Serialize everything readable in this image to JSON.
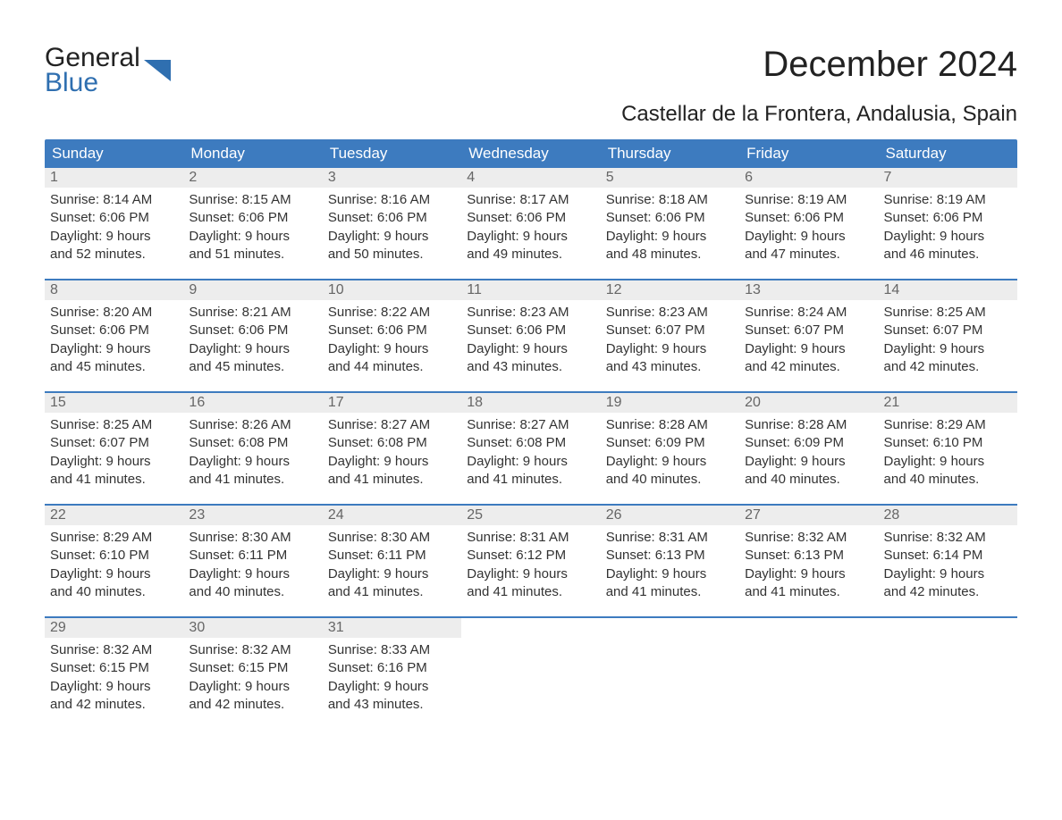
{
  "logo": {
    "line1": "General",
    "line2": "Blue",
    "accent_color": "#2f6fb0"
  },
  "title": "December 2024",
  "subtitle": "Castellar de la Frontera, Andalusia, Spain",
  "colors": {
    "header_bg": "#3d7bbf",
    "header_text": "#ffffff",
    "daynum_bg": "#ededed",
    "daynum_text": "#666666",
    "body_text": "#333333",
    "week_border": "#3d7bbf",
    "page_bg": "#ffffff"
  },
  "typography": {
    "title_fontsize": 40,
    "subtitle_fontsize": 24,
    "weekday_fontsize": 17,
    "daynum_fontsize": 16,
    "body_fontsize": 15
  },
  "weekdays": [
    "Sunday",
    "Monday",
    "Tuesday",
    "Wednesday",
    "Thursday",
    "Friday",
    "Saturday"
  ],
  "weeks": [
    [
      {
        "n": "1",
        "sunrise": "Sunrise: 8:14 AM",
        "sunset": "Sunset: 6:06 PM",
        "day1": "Daylight: 9 hours",
        "day2": "and 52 minutes."
      },
      {
        "n": "2",
        "sunrise": "Sunrise: 8:15 AM",
        "sunset": "Sunset: 6:06 PM",
        "day1": "Daylight: 9 hours",
        "day2": "and 51 minutes."
      },
      {
        "n": "3",
        "sunrise": "Sunrise: 8:16 AM",
        "sunset": "Sunset: 6:06 PM",
        "day1": "Daylight: 9 hours",
        "day2": "and 50 minutes."
      },
      {
        "n": "4",
        "sunrise": "Sunrise: 8:17 AM",
        "sunset": "Sunset: 6:06 PM",
        "day1": "Daylight: 9 hours",
        "day2": "and 49 minutes."
      },
      {
        "n": "5",
        "sunrise": "Sunrise: 8:18 AM",
        "sunset": "Sunset: 6:06 PM",
        "day1": "Daylight: 9 hours",
        "day2": "and 48 minutes."
      },
      {
        "n": "6",
        "sunrise": "Sunrise: 8:19 AM",
        "sunset": "Sunset: 6:06 PM",
        "day1": "Daylight: 9 hours",
        "day2": "and 47 minutes."
      },
      {
        "n": "7",
        "sunrise": "Sunrise: 8:19 AM",
        "sunset": "Sunset: 6:06 PM",
        "day1": "Daylight: 9 hours",
        "day2": "and 46 minutes."
      }
    ],
    [
      {
        "n": "8",
        "sunrise": "Sunrise: 8:20 AM",
        "sunset": "Sunset: 6:06 PM",
        "day1": "Daylight: 9 hours",
        "day2": "and 45 minutes."
      },
      {
        "n": "9",
        "sunrise": "Sunrise: 8:21 AM",
        "sunset": "Sunset: 6:06 PM",
        "day1": "Daylight: 9 hours",
        "day2": "and 45 minutes."
      },
      {
        "n": "10",
        "sunrise": "Sunrise: 8:22 AM",
        "sunset": "Sunset: 6:06 PM",
        "day1": "Daylight: 9 hours",
        "day2": "and 44 minutes."
      },
      {
        "n": "11",
        "sunrise": "Sunrise: 8:23 AM",
        "sunset": "Sunset: 6:06 PM",
        "day1": "Daylight: 9 hours",
        "day2": "and 43 minutes."
      },
      {
        "n": "12",
        "sunrise": "Sunrise: 8:23 AM",
        "sunset": "Sunset: 6:07 PM",
        "day1": "Daylight: 9 hours",
        "day2": "and 43 minutes."
      },
      {
        "n": "13",
        "sunrise": "Sunrise: 8:24 AM",
        "sunset": "Sunset: 6:07 PM",
        "day1": "Daylight: 9 hours",
        "day2": "and 42 minutes."
      },
      {
        "n": "14",
        "sunrise": "Sunrise: 8:25 AM",
        "sunset": "Sunset: 6:07 PM",
        "day1": "Daylight: 9 hours",
        "day2": "and 42 minutes."
      }
    ],
    [
      {
        "n": "15",
        "sunrise": "Sunrise: 8:25 AM",
        "sunset": "Sunset: 6:07 PM",
        "day1": "Daylight: 9 hours",
        "day2": "and 41 minutes."
      },
      {
        "n": "16",
        "sunrise": "Sunrise: 8:26 AM",
        "sunset": "Sunset: 6:08 PM",
        "day1": "Daylight: 9 hours",
        "day2": "and 41 minutes."
      },
      {
        "n": "17",
        "sunrise": "Sunrise: 8:27 AM",
        "sunset": "Sunset: 6:08 PM",
        "day1": "Daylight: 9 hours",
        "day2": "and 41 minutes."
      },
      {
        "n": "18",
        "sunrise": "Sunrise: 8:27 AM",
        "sunset": "Sunset: 6:08 PM",
        "day1": "Daylight: 9 hours",
        "day2": "and 41 minutes."
      },
      {
        "n": "19",
        "sunrise": "Sunrise: 8:28 AM",
        "sunset": "Sunset: 6:09 PM",
        "day1": "Daylight: 9 hours",
        "day2": "and 40 minutes."
      },
      {
        "n": "20",
        "sunrise": "Sunrise: 8:28 AM",
        "sunset": "Sunset: 6:09 PM",
        "day1": "Daylight: 9 hours",
        "day2": "and 40 minutes."
      },
      {
        "n": "21",
        "sunrise": "Sunrise: 8:29 AM",
        "sunset": "Sunset: 6:10 PM",
        "day1": "Daylight: 9 hours",
        "day2": "and 40 minutes."
      }
    ],
    [
      {
        "n": "22",
        "sunrise": "Sunrise: 8:29 AM",
        "sunset": "Sunset: 6:10 PM",
        "day1": "Daylight: 9 hours",
        "day2": "and 40 minutes."
      },
      {
        "n": "23",
        "sunrise": "Sunrise: 8:30 AM",
        "sunset": "Sunset: 6:11 PM",
        "day1": "Daylight: 9 hours",
        "day2": "and 40 minutes."
      },
      {
        "n": "24",
        "sunrise": "Sunrise: 8:30 AM",
        "sunset": "Sunset: 6:11 PM",
        "day1": "Daylight: 9 hours",
        "day2": "and 41 minutes."
      },
      {
        "n": "25",
        "sunrise": "Sunrise: 8:31 AM",
        "sunset": "Sunset: 6:12 PM",
        "day1": "Daylight: 9 hours",
        "day2": "and 41 minutes."
      },
      {
        "n": "26",
        "sunrise": "Sunrise: 8:31 AM",
        "sunset": "Sunset: 6:13 PM",
        "day1": "Daylight: 9 hours",
        "day2": "and 41 minutes."
      },
      {
        "n": "27",
        "sunrise": "Sunrise: 8:32 AM",
        "sunset": "Sunset: 6:13 PM",
        "day1": "Daylight: 9 hours",
        "day2": "and 41 minutes."
      },
      {
        "n": "28",
        "sunrise": "Sunrise: 8:32 AM",
        "sunset": "Sunset: 6:14 PM",
        "day1": "Daylight: 9 hours",
        "day2": "and 42 minutes."
      }
    ],
    [
      {
        "n": "29",
        "sunrise": "Sunrise: 8:32 AM",
        "sunset": "Sunset: 6:15 PM",
        "day1": "Daylight: 9 hours",
        "day2": "and 42 minutes."
      },
      {
        "n": "30",
        "sunrise": "Sunrise: 8:32 AM",
        "sunset": "Sunset: 6:15 PM",
        "day1": "Daylight: 9 hours",
        "day2": "and 42 minutes."
      },
      {
        "n": "31",
        "sunrise": "Sunrise: 8:33 AM",
        "sunset": "Sunset: 6:16 PM",
        "day1": "Daylight: 9 hours",
        "day2": "and 43 minutes."
      },
      {
        "empty": true
      },
      {
        "empty": true
      },
      {
        "empty": true
      },
      {
        "empty": true
      }
    ]
  ]
}
